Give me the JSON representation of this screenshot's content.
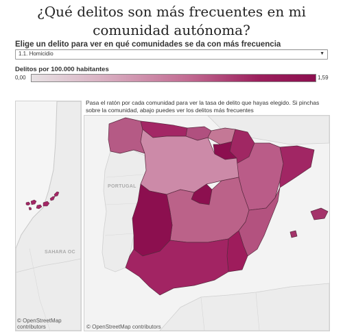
{
  "title": "¿Qué delitos son más frecuentes en mi comunidad autónoma?",
  "selector": {
    "label": "Elige un delito para ver en qué comunidades se da con más frecuencia",
    "selected": "1.1. Homicidio"
  },
  "legend": {
    "label": "Delitos por 100.000 habitantes",
    "min": "0,00",
    "max": "1,59",
    "color_low": "#e7e2e4",
    "color_high": "#8c0f4f"
  },
  "instructions": "Pasa el ratón por cada comunidad para ver la tasa de delito que hayas elegido. Si pinchas sobre la comunidad, abajo puedes ver los delitos más frecuentes",
  "map_labels": {
    "portugal": "PORTUGAL",
    "sahara": "SAHARA OC"
  },
  "credits": {
    "left": "© OpenStreetMap contributors",
    "right": "© OpenStreetMap contributors"
  },
  "region_colors": {
    "galicia": "#b55a85",
    "asturias": "#a32665",
    "cantabria": "#b0507f",
    "pais_vasco": "#c47896",
    "navarra": "#a02763",
    "la_rioja": "#8c0f4f",
    "aragon": "#ba5c88",
    "cataluna": "#a12664",
    "castilla_leon": "#cc8aa8",
    "madrid": "#8c0f4f",
    "castilla_la_mancha": "#bb6289",
    "extremadura": "#8c0f4f",
    "andalucia": "#a22463",
    "murcia": "#9e1c5c",
    "valencia": "#b3527f",
    "baleares": "#a4336a",
    "canarias": "#a32665"
  }
}
